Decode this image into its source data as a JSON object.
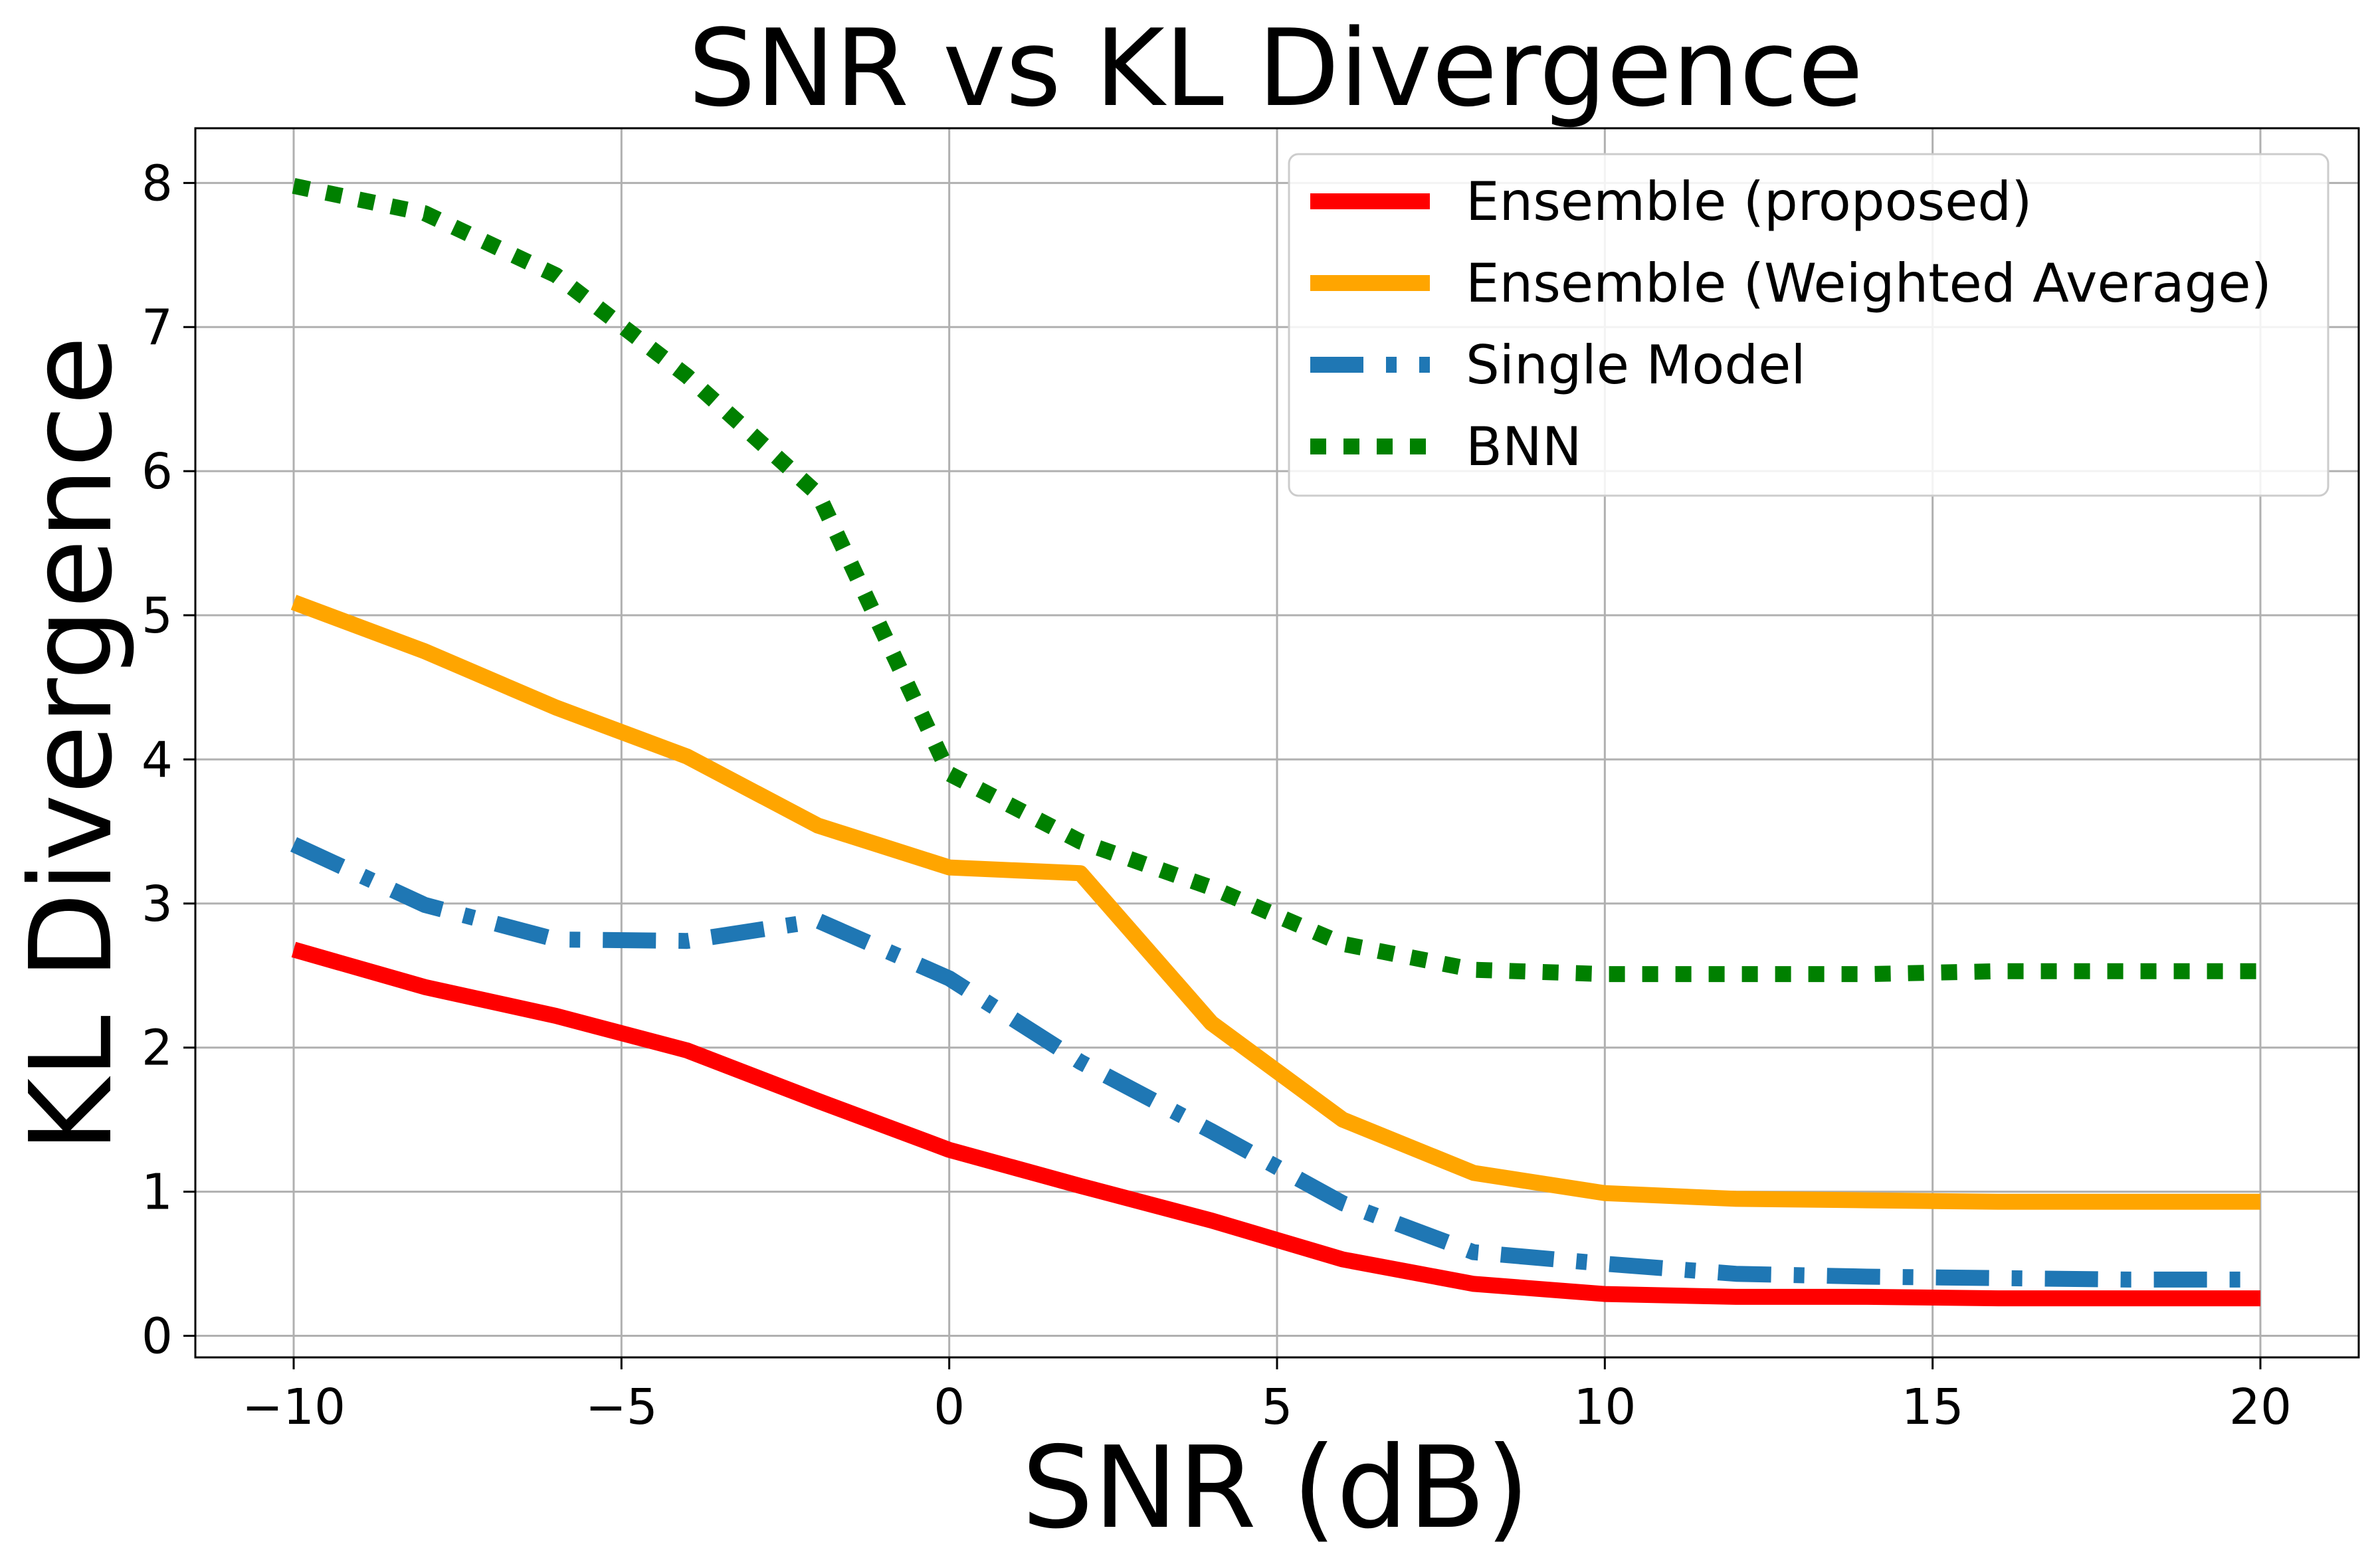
{
  "chart_data": {
    "type": "line",
    "title": "SNR vs KL Divergence",
    "xlabel": "SNR (dB)",
    "ylabel": "KL Divergence",
    "xlim": [
      -11.5,
      21.5
    ],
    "ylim": [
      -0.15,
      8.38
    ],
    "xticks": [
      -10,
      -5,
      0,
      5,
      10,
      15,
      20
    ],
    "xtick_labels": [
      "−10",
      "−5",
      "0",
      "5",
      "10",
      "15",
      "20"
    ],
    "yticks": [
      0,
      1,
      2,
      3,
      4,
      5,
      6,
      7,
      8
    ],
    "ytick_labels": [
      "0",
      "1",
      "2",
      "3",
      "4",
      "5",
      "6",
      "7",
      "8"
    ],
    "grid": true,
    "legend_position": "top-right",
    "x": [
      -10,
      -8,
      -6,
      -4,
      -2,
      0,
      2,
      4,
      6,
      8,
      10,
      12,
      14,
      16,
      18,
      20
    ],
    "series": [
      {
        "name": "Ensemble (proposed)",
        "color": "#ff0000",
        "style": "solid",
        "values": [
          2.68,
          2.42,
          2.22,
          1.98,
          1.63,
          1.29,
          1.04,
          0.8,
          0.53,
          0.36,
          0.29,
          0.27,
          0.27,
          0.26,
          0.26,
          0.26
        ]
      },
      {
        "name": "Ensemble (Weighted Average)",
        "color": "#ffa500",
        "style": "solid",
        "values": [
          5.09,
          4.75,
          4.36,
          4.02,
          3.54,
          3.25,
          3.21,
          2.17,
          1.5,
          1.13,
          0.99,
          0.95,
          0.94,
          0.93,
          0.93,
          0.93
        ]
      },
      {
        "name": "Single Model",
        "color": "#1f77b4",
        "style": "dashdot",
        "values": [
          3.41,
          2.99,
          2.75,
          2.74,
          2.88,
          2.48,
          1.9,
          1.42,
          0.92,
          0.58,
          0.5,
          0.43,
          0.41,
          0.4,
          0.39,
          0.39
        ]
      },
      {
        "name": "BNN",
        "color": "#008000",
        "style": "dotted",
        "values": [
          7.98,
          7.79,
          7.36,
          6.66,
          5.84,
          3.9,
          3.43,
          3.11,
          2.72,
          2.54,
          2.51,
          2.51,
          2.51,
          2.53,
          2.53,
          2.53
        ]
      }
    ]
  }
}
